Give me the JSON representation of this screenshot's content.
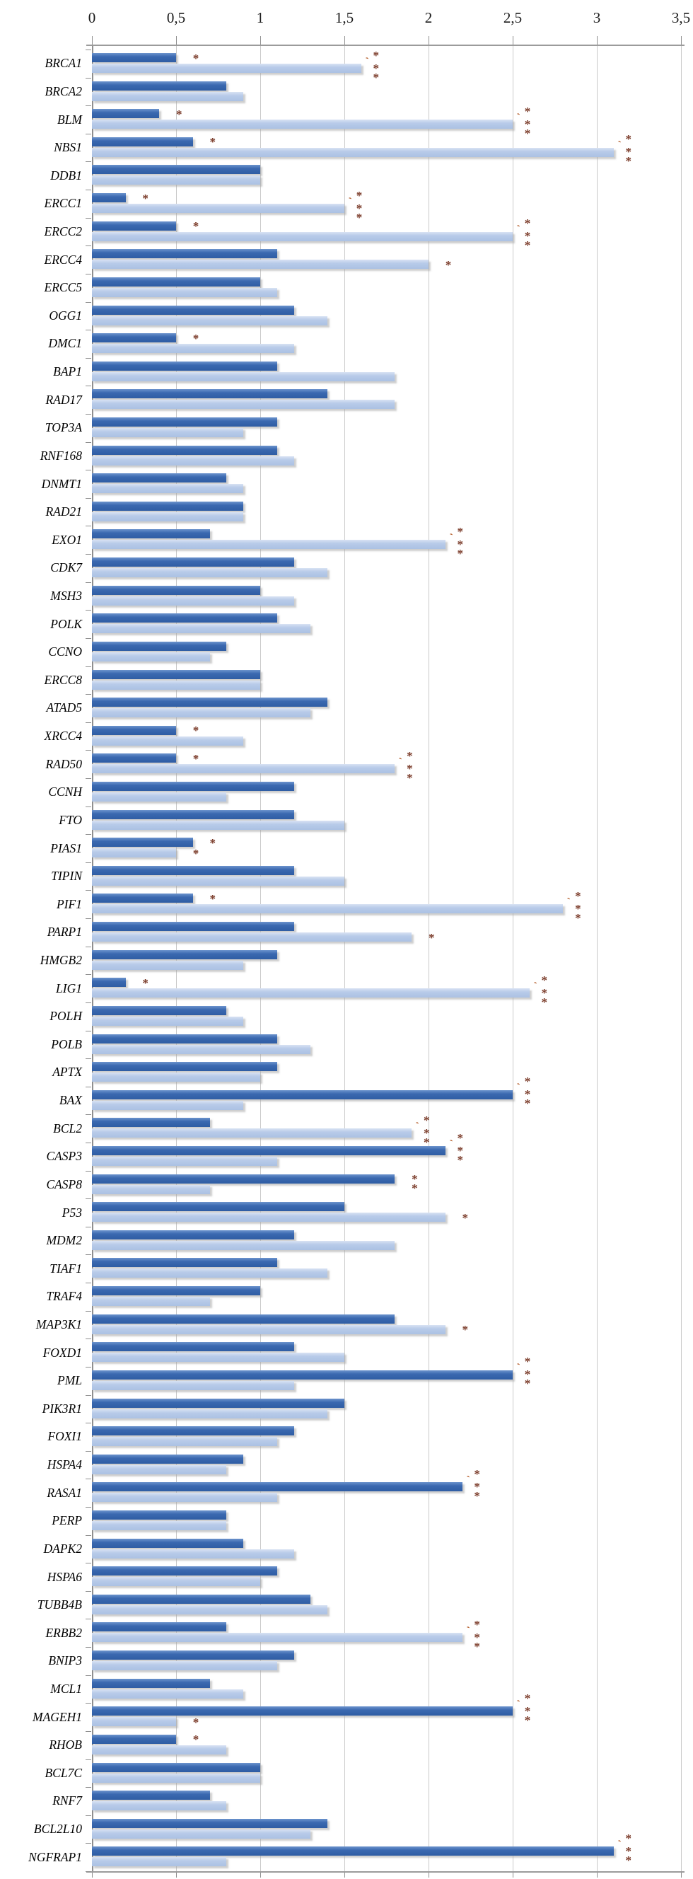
{
  "chart_data": {
    "type": "bar",
    "orientation": "horizontal",
    "title": "",
    "xlabel": "",
    "ylabel": "",
    "grid": "vertical",
    "legend": "none",
    "decimal_separator": "comma",
    "x_axis": {
      "max": 3.5,
      "ticks": [
        {
          "label": "0",
          "value": 0
        },
        {
          "label": "0,5",
          "value": 0.5
        },
        {
          "label": "1",
          "value": 1
        },
        {
          "label": "1,5",
          "value": 1.5
        },
        {
          "label": "2",
          "value": 2
        },
        {
          "label": "2,5",
          "value": 2.5
        },
        {
          "label": "3",
          "value": 3
        },
        {
          "label": "3,5",
          "value": 3.5
        }
      ]
    },
    "series": [
      {
        "key": "dark",
        "swatch": "dark-blue"
      },
      {
        "key": "light",
        "swatch": "light-blue"
      }
    ],
    "significance_codes": [
      "*",
      "**",
      "`***"
    ],
    "genes": [
      {
        "name": "BRCA1",
        "dark": 0.5,
        "light": 1.6,
        "dark_sig": "*",
        "light_sig": "`***"
      },
      {
        "name": "BRCA2",
        "dark": 0.8,
        "light": 0.9,
        "dark_sig": "",
        "light_sig": ""
      },
      {
        "name": "BLM",
        "dark": 0.4,
        "light": 2.5,
        "dark_sig": "*",
        "light_sig": "`***"
      },
      {
        "name": "NBS1",
        "dark": 0.6,
        "light": 3.1,
        "dark_sig": "*",
        "light_sig": "`***"
      },
      {
        "name": "DDB1",
        "dark": 1.0,
        "light": 1.0,
        "dark_sig": "",
        "light_sig": ""
      },
      {
        "name": "ERCC1",
        "dark": 0.2,
        "light": 1.5,
        "dark_sig": "*",
        "light_sig": "`***"
      },
      {
        "name": "ERCC2",
        "dark": 0.5,
        "light": 2.5,
        "dark_sig": "*",
        "light_sig": "`***"
      },
      {
        "name": "ERCC4",
        "dark": 1.1,
        "light": 2.0,
        "dark_sig": "",
        "light_sig": "*"
      },
      {
        "name": "ERCC5",
        "dark": 1.0,
        "light": 1.1,
        "dark_sig": "",
        "light_sig": ""
      },
      {
        "name": "OGG1",
        "dark": 1.2,
        "light": 1.4,
        "dark_sig": "",
        "light_sig": ""
      },
      {
        "name": "DMC1",
        "dark": 0.5,
        "light": 1.2,
        "dark_sig": "*",
        "light_sig": ""
      },
      {
        "name": "BAP1",
        "dark": 1.1,
        "light": 1.8,
        "dark_sig": "",
        "light_sig": ""
      },
      {
        "name": "RAD17",
        "dark": 1.4,
        "light": 1.8,
        "dark_sig": "",
        "light_sig": ""
      },
      {
        "name": "TOP3A",
        "dark": 1.1,
        "light": 0.9,
        "dark_sig": "",
        "light_sig": ""
      },
      {
        "name": "RNF168",
        "dark": 1.1,
        "light": 1.2,
        "dark_sig": "",
        "light_sig": ""
      },
      {
        "name": "DNMT1",
        "dark": 0.8,
        "light": 0.9,
        "dark_sig": "",
        "light_sig": ""
      },
      {
        "name": "RAD21",
        "dark": 0.9,
        "light": 0.9,
        "dark_sig": "",
        "light_sig": ""
      },
      {
        "name": "EXO1",
        "dark": 0.7,
        "light": 2.1,
        "dark_sig": "",
        "light_sig": "`***"
      },
      {
        "name": "CDK7",
        "dark": 1.2,
        "light": 1.4,
        "dark_sig": "",
        "light_sig": ""
      },
      {
        "name": "MSH3",
        "dark": 1.0,
        "light": 1.2,
        "dark_sig": "",
        "light_sig": ""
      },
      {
        "name": "POLK",
        "dark": 1.1,
        "light": 1.3,
        "dark_sig": "",
        "light_sig": ""
      },
      {
        "name": "CCNO",
        "dark": 0.8,
        "light": 0.7,
        "dark_sig": "",
        "light_sig": ""
      },
      {
        "name": "ERCC8",
        "dark": 1.0,
        "light": 1.0,
        "dark_sig": "",
        "light_sig": ""
      },
      {
        "name": "ATAD5",
        "dark": 1.4,
        "light": 1.3,
        "dark_sig": "",
        "light_sig": ""
      },
      {
        "name": "XRCC4",
        "dark": 0.5,
        "light": 0.9,
        "dark_sig": "*",
        "light_sig": ""
      },
      {
        "name": "RAD50",
        "dark": 0.5,
        "light": 1.8,
        "dark_sig": "*",
        "light_sig": "`***"
      },
      {
        "name": "CCNH",
        "dark": 1.2,
        "light": 0.8,
        "dark_sig": "",
        "light_sig": ""
      },
      {
        "name": "FTO",
        "dark": 1.2,
        "light": 1.5,
        "dark_sig": "",
        "light_sig": ""
      },
      {
        "name": "PIAS1",
        "dark": 0.6,
        "light": 0.5,
        "dark_sig": "*",
        "light_sig": "*"
      },
      {
        "name": "TIPIN",
        "dark": 1.2,
        "light": 1.5,
        "dark_sig": "",
        "light_sig": ""
      },
      {
        "name": "PIF1",
        "dark": 0.6,
        "light": 2.8,
        "dark_sig": "*",
        "light_sig": "`***"
      },
      {
        "name": "PARP1",
        "dark": 1.2,
        "light": 1.9,
        "dark_sig": "",
        "light_sig": "*"
      },
      {
        "name": "HMGB2",
        "dark": 1.1,
        "light": 0.9,
        "dark_sig": "",
        "light_sig": ""
      },
      {
        "name": "LIG1",
        "dark": 0.2,
        "light": 2.6,
        "dark_sig": "*",
        "light_sig": "`***"
      },
      {
        "name": "POLH",
        "dark": 0.8,
        "light": 0.9,
        "dark_sig": "",
        "light_sig": ""
      },
      {
        "name": "POLB",
        "dark": 1.1,
        "light": 1.3,
        "dark_sig": "",
        "light_sig": ""
      },
      {
        "name": "APTX",
        "dark": 1.1,
        "light": 1.0,
        "dark_sig": "",
        "light_sig": ""
      },
      {
        "name": "BAX",
        "dark": 2.5,
        "light": 0.9,
        "dark_sig": "`***",
        "light_sig": ""
      },
      {
        "name": "BCL2",
        "dark": 0.7,
        "light": 1.9,
        "dark_sig": "",
        "light_sig": "`***"
      },
      {
        "name": "CASP3",
        "dark": 2.1,
        "light": 1.1,
        "dark_sig": "`***",
        "light_sig": ""
      },
      {
        "name": "CASP8",
        "dark": 1.8,
        "light": 0.7,
        "dark_sig": "**",
        "light_sig": ""
      },
      {
        "name": "P53",
        "dark": 1.5,
        "light": 2.1,
        "dark_sig": "",
        "light_sig": "*"
      },
      {
        "name": "MDM2",
        "dark": 1.2,
        "light": 1.8,
        "dark_sig": "",
        "light_sig": ""
      },
      {
        "name": "TIAF1",
        "dark": 1.1,
        "light": 1.4,
        "dark_sig": "",
        "light_sig": ""
      },
      {
        "name": "TRAF4",
        "dark": 1.0,
        "light": 0.7,
        "dark_sig": "",
        "light_sig": ""
      },
      {
        "name": "MAP3K1",
        "dark": 1.8,
        "light": 2.1,
        "dark_sig": "",
        "light_sig": "*"
      },
      {
        "name": "FOXD1",
        "dark": 1.2,
        "light": 1.5,
        "dark_sig": "",
        "light_sig": ""
      },
      {
        "name": "PML",
        "dark": 2.5,
        "light": 1.2,
        "dark_sig": "`***",
        "light_sig": ""
      },
      {
        "name": "PIK3R1",
        "dark": 1.5,
        "light": 1.4,
        "dark_sig": "",
        "light_sig": ""
      },
      {
        "name": "FOXI1",
        "dark": 1.2,
        "light": 1.1,
        "dark_sig": "",
        "light_sig": ""
      },
      {
        "name": "HSPA4",
        "dark": 0.9,
        "light": 0.8,
        "dark_sig": "",
        "light_sig": ""
      },
      {
        "name": "RASA1",
        "dark": 2.2,
        "light": 1.1,
        "dark_sig": "`***",
        "light_sig": ""
      },
      {
        "name": "PERP",
        "dark": 0.8,
        "light": 0.8,
        "dark_sig": "",
        "light_sig": ""
      },
      {
        "name": "DAPK2",
        "dark": 0.9,
        "light": 1.2,
        "dark_sig": "",
        "light_sig": ""
      },
      {
        "name": "HSPA6",
        "dark": 1.1,
        "light": 1.0,
        "dark_sig": "",
        "light_sig": ""
      },
      {
        "name": "TUBB4B",
        "dark": 1.3,
        "light": 1.4,
        "dark_sig": "",
        "light_sig": ""
      },
      {
        "name": "ERBB2",
        "dark": 0.8,
        "light": 2.2,
        "dark_sig": "",
        "light_sig": "`***"
      },
      {
        "name": "BNIP3",
        "dark": 1.2,
        "light": 1.1,
        "dark_sig": "",
        "light_sig": ""
      },
      {
        "name": "MCL1",
        "dark": 0.7,
        "light": 0.9,
        "dark_sig": "",
        "light_sig": ""
      },
      {
        "name": "MAGEH1",
        "dark": 2.5,
        "light": 0.5,
        "dark_sig": "`***",
        "light_sig": "*"
      },
      {
        "name": "RHOB",
        "dark": 0.5,
        "light": 0.8,
        "dark_sig": "*",
        "light_sig": ""
      },
      {
        "name": "BCL7C",
        "dark": 1.0,
        "light": 1.0,
        "dark_sig": "",
        "light_sig": ""
      },
      {
        "name": "RNF7",
        "dark": 0.7,
        "light": 0.8,
        "dark_sig": "",
        "light_sig": ""
      },
      {
        "name": "BCL2L10",
        "dark": 1.4,
        "light": 1.3,
        "dark_sig": "",
        "light_sig": ""
      },
      {
        "name": "NGFRAP1",
        "dark": 3.1,
        "light": 0.8,
        "dark_sig": "`***",
        "light_sig": ""
      }
    ]
  },
  "colors": {
    "dark_bar": "#3B69B0",
    "dark_bar_hi": "#6C93CD",
    "dark_bar_lo": "#2F5DA4",
    "light_bar": "#B8CBE9",
    "light_bar_hi": "#D8E2F3",
    "light_bar_lo": "#ABC1E3",
    "gridline": "#C9C9C9",
    "axis": "#8F8F8F",
    "marker": "#7A3A28",
    "marker_tick": "#B5602E"
  }
}
